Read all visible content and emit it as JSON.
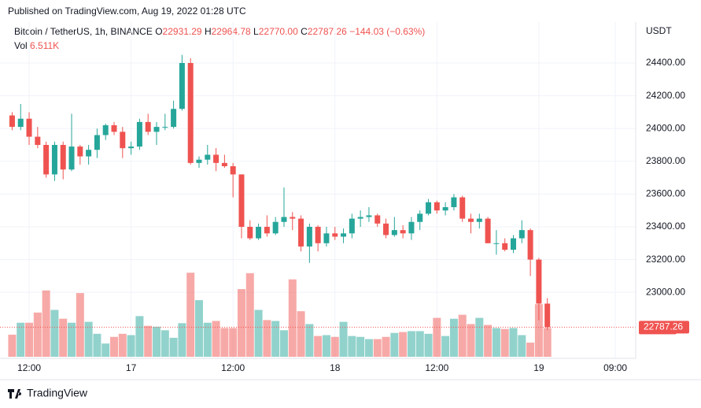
{
  "header": {
    "published": "Published on TradingView.com, Aug 19, 2022 01:28 UTC",
    "symbol": "Bitcoin / TetherUS, 1h, BINANCE",
    "legend_items": [
      {
        "key": "O",
        "value": "22931.29"
      },
      {
        "key": "H",
        "value": "22964.78"
      },
      {
        "key": "L",
        "value": "22770.00"
      },
      {
        "key": "C",
        "value": "22787.26"
      }
    ],
    "change": "−144.03 (−0.63%)",
    "volume_key": "Vol",
    "volume_value": "6.511K",
    "footer": "TradingView"
  },
  "chart_data": {
    "type": "candlestick",
    "y_axis_label": "USDT",
    "up_color": "#26a69a",
    "down_color": "#ef5350",
    "open": [
      24080,
      24010,
      24060,
      23950,
      23900,
      23720,
      23900,
      23750,
      23890,
      23830,
      23870,
      23960,
      24020,
      23980,
      23880,
      23890,
      24040,
      23980,
      24010,
      24010,
      24120,
      24400,
      23790,
      23810,
      23840,
      23790,
      23770,
      23720,
      23400,
      23330,
      23400,
      23360,
      23430,
      23460,
      23450,
      23280,
      23400,
      23300,
      23360,
      23340,
      23360,
      23450,
      23460,
      23470,
      23420,
      23350,
      23380,
      23360,
      23430,
      23480,
      23550,
      23500,
      23520,
      23580,
      23450,
      23430,
      23450,
      23300,
      23300,
      23260,
      23330,
      23380,
      23200,
      22931.29
    ],
    "high": [
      24100,
      24150,
      24100,
      24010,
      23920,
      23920,
      23920,
      24090,
      23900,
      23900,
      24000,
      24030,
      24040,
      24010,
      23920,
      24060,
      24090,
      24040,
      24090,
      24170,
      24450,
      24430,
      23830,
      23900,
      23880,
      23840,
      23790,
      23720,
      23440,
      23420,
      23470,
      23460,
      23640,
      23490,
      23470,
      23420,
      23410,
      23400,
      23400,
      23390,
      23480,
      23500,
      23520,
      23480,
      23450,
      23460,
      23410,
      23460,
      23500,
      23570,
      23560,
      23550,
      23600,
      23590,
      23480,
      23480,
      23460,
      23380,
      23330,
      23350,
      23440,
      23390,
      23210,
      22964.78
    ],
    "low": [
      23990,
      23990,
      23900,
      23880,
      23700,
      23680,
      23690,
      23740,
      23780,
      23780,
      23820,
      23930,
      23960,
      23820,
      23840,
      23870,
      23960,
      23900,
      23990,
      24000,
      24110,
      23780,
      23760,
      23780,
      23740,
      23760,
      23580,
      23330,
      23320,
      23320,
      23340,
      23350,
      23400,
      23380,
      23250,
      23180,
      23250,
      23280,
      23320,
      23300,
      23330,
      23400,
      23430,
      23400,
      23330,
      23340,
      23330,
      23320,
      23380,
      23470,
      23480,
      23470,
      23500,
      23430,
      23360,
      23390,
      23300,
      23230,
      23250,
      23240,
      23300,
      23100,
      22830,
      22770
    ],
    "close": [
      24010,
      24060,
      23950,
      23900,
      23720,
      23900,
      23750,
      23890,
      23830,
      23870,
      23960,
      24020,
      23980,
      23880,
      23890,
      24040,
      23980,
      24010,
      24010,
      24120,
      24400,
      23790,
      23810,
      23840,
      23790,
      23770,
      23720,
      23400,
      23330,
      23400,
      23360,
      23430,
      23460,
      23450,
      23280,
      23400,
      23300,
      23360,
      23340,
      23360,
      23450,
      23460,
      23470,
      23420,
      23350,
      23380,
      23360,
      23430,
      23480,
      23550,
      23500,
      23520,
      23580,
      23450,
      23430,
      23450,
      23300,
      23300,
      23260,
      23330,
      23380,
      23200,
      22931.29,
      22787.26
    ],
    "volume": {
      "name": "Vol",
      "axis": "y2",
      "values": [
        5,
        7.7,
        7.7,
        10,
        15,
        10.6,
        8.6,
        7.7,
        14.4,
        7.9,
        5.2,
        3,
        4.5,
        5.2,
        4.9,
        9.2,
        7,
        6.8,
        6,
        4.3,
        7.6,
        19,
        12.8,
        7.7,
        8.1,
        6.5,
        6.5,
        15.3,
        18.9,
        10.6,
        8.3,
        8.1,
        6,
        17.5,
        10.3,
        7.4,
        4.7,
        4.9,
        4.5,
        7.9,
        4.7,
        4.5,
        4,
        4,
        4.5,
        5.4,
        5.6,
        5.8,
        5.8,
        5.2,
        8.8,
        4.7,
        8.6,
        9.5,
        7.4,
        8.8,
        7.2,
        6.5,
        6.3,
        6.5,
        4.9,
        3.2,
        11.9,
        6.511
      ],
      "value_labels": {
        "63": "6.511K"
      }
    },
    "last_price_label": "22787.26",
    "ylim": [
      22597,
      24650
    ],
    "yticks": [
      {
        "value": 23000,
        "label": "23000.00"
      },
      {
        "value": 23200,
        "label": "23200.00"
      },
      {
        "value": 23400,
        "label": "23400.00"
      },
      {
        "value": 23600,
        "label": "23600.00"
      },
      {
        "value": 23800,
        "label": "23800.00"
      },
      {
        "value": 24000,
        "label": "24000.00"
      },
      {
        "value": 24200,
        "label": "24200.00"
      },
      {
        "value": 24400,
        "label": "24400.00"
      }
    ],
    "y2lim": [
      0,
      76
    ],
    "xlim": [
      -1.43,
      73.4
    ],
    "xticks": [
      {
        "value": 2,
        "label": "12:00"
      },
      {
        "value": 14,
        "label": "17"
      },
      {
        "value": 26,
        "label": "12:00"
      },
      {
        "value": 38,
        "label": "18"
      },
      {
        "value": 50,
        "label": "12:00"
      },
      {
        "value": 62,
        "label": "19"
      },
      {
        "value": 71,
        "label": "09:00"
      }
    ],
    "grid": true
  }
}
